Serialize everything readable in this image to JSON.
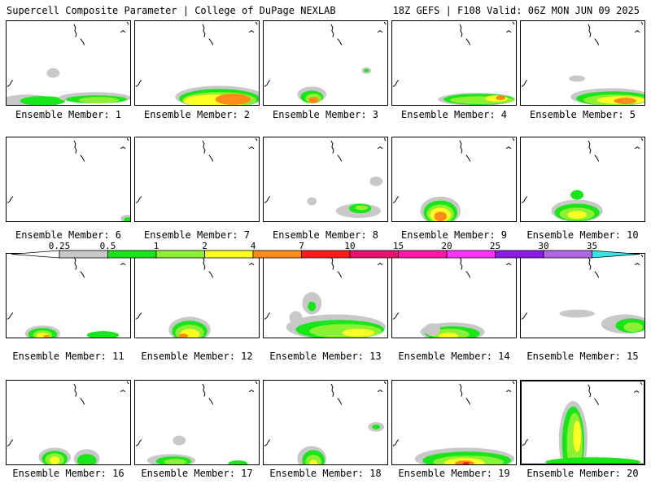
{
  "header": {
    "left_title": "Supercell Composite Parameter | College of DuPage NEXLAB",
    "right_title": "18Z GEFS | F108 Valid: 06Z MON JUN 09 2025"
  },
  "colorbar": {
    "levels": [
      {
        "label": "0.25",
        "color": "#c8c8c8"
      },
      {
        "label": "0.5",
        "color": "#19e619"
      },
      {
        "label": "1",
        "color": "#8cf033"
      },
      {
        "label": "2",
        "color": "#ffff26"
      },
      {
        "label": "4",
        "color": "#ff8c1a"
      },
      {
        "label": "7",
        "color": "#ff1a1a"
      },
      {
        "label": "10",
        "color": "#e6106e"
      },
      {
        "label": "15",
        "color": "#ff1aa6"
      },
      {
        "label": "20",
        "color": "#ff33ff"
      },
      {
        "label": "25",
        "color": "#8c19e6"
      },
      {
        "label": "30",
        "color": "#b266e6"
      },
      {
        "label": "35",
        "color": "#33e6e6"
      }
    ]
  },
  "panels": [
    {
      "label": "Ensemble Member: 1",
      "blobs": [
        [
          25,
          100,
          32,
          8,
          0.25
        ],
        [
          45,
          100,
          28,
          6,
          0.5
        ],
        [
          110,
          96,
          45,
          7,
          0.25
        ],
        [
          112,
          98,
          38,
          5,
          0.5
        ],
        [
          115,
          99,
          25,
          4,
          1
        ],
        [
          58,
          65,
          8,
          6,
          0.25
        ]
      ]
    },
    {
      "label": "Ensemble Member: 2",
      "blobs": [
        [
          105,
          95,
          55,
          14,
          0.25
        ],
        [
          105,
          97,
          50,
          12,
          0.5
        ],
        [
          105,
          99,
          46,
          10,
          1
        ],
        [
          100,
          100,
          40,
          8,
          2
        ],
        [
          122,
          98,
          22,
          7,
          4
        ]
      ]
    },
    {
      "label": "Ensemble Member: 3",
      "blobs": [
        [
          60,
          92,
          18,
          10,
          0.25
        ],
        [
          60,
          95,
          14,
          8,
          0.5
        ],
        [
          62,
          97,
          10,
          6,
          1
        ],
        [
          62,
          99,
          6,
          4,
          4
        ],
        [
          128,
          62,
          6,
          4,
          0.25
        ],
        [
          128,
          62,
          3,
          2,
          0.5
        ]
      ]
    },
    {
      "label": "Ensemble Member: 4",
      "blobs": [
        [
          105,
          98,
          48,
          8,
          0.25
        ],
        [
          108,
          98,
          44,
          7,
          0.5
        ],
        [
          112,
          99,
          40,
          5,
          1
        ],
        [
          130,
          97,
          14,
          4,
          2
        ],
        [
          135,
          96,
          6,
          3,
          4
        ]
      ]
    },
    {
      "label": "Ensemble Member: 5",
      "blobs": [
        [
          112,
          95,
          50,
          11,
          0.25
        ],
        [
          115,
          97,
          46,
          9,
          0.5
        ],
        [
          118,
          99,
          40,
          7,
          1
        ],
        [
          125,
          99,
          30,
          5,
          2
        ],
        [
          130,
          100,
          14,
          4,
          4
        ],
        [
          70,
          72,
          10,
          4,
          0.25
        ]
      ]
    },
    {
      "label": "Ensemble Member: 6",
      "blobs": [
        [
          150,
          102,
          8,
          5,
          0.25
        ],
        [
          151,
          103,
          5,
          3,
          0.5
        ]
      ]
    },
    {
      "label": "Ensemble Member: 7",
      "blobs": []
    },
    {
      "label": "Ensemble Member: 8",
      "blobs": [
        [
          118,
          92,
          28,
          9,
          0.25
        ],
        [
          120,
          89,
          14,
          6,
          0.5
        ],
        [
          122,
          88,
          8,
          3,
          1
        ],
        [
          140,
          55,
          8,
          6,
          0.25
        ],
        [
          60,
          80,
          6,
          5,
          0.25
        ]
      ]
    },
    {
      "label": "Ensemble Member: 9",
      "blobs": [
        [
          60,
          92,
          25,
          18,
          0.25
        ],
        [
          60,
          94,
          21,
          15,
          0.5
        ],
        [
          60,
          96,
          17,
          12,
          1
        ],
        [
          60,
          97,
          13,
          9,
          2
        ],
        [
          60,
          99,
          8,
          6,
          4
        ]
      ]
    },
    {
      "label": "Ensemble Member: 10",
      "blobs": [
        [
          70,
          92,
          32,
          14,
          0.25
        ],
        [
          70,
          94,
          28,
          11,
          0.5
        ],
        [
          70,
          96,
          22,
          8,
          1
        ],
        [
          70,
          97,
          12,
          5,
          2
        ],
        [
          70,
          72,
          8,
          6,
          0.5
        ]
      ]
    },
    {
      "label": "Ensemble Member: 11",
      "blobs": [
        [
          45,
          100,
          22,
          10,
          0.25
        ],
        [
          45,
          101,
          18,
          8,
          0.5
        ],
        [
          45,
          102,
          12,
          6,
          1
        ],
        [
          45,
          103,
          8,
          4,
          2
        ],
        [
          50,
          104,
          4,
          2,
          4
        ],
        [
          120,
          102,
          20,
          5,
          0.5
        ]
      ]
    },
    {
      "label": "Ensemble Member: 12",
      "blobs": [
        [
          68,
          95,
          26,
          16,
          0.25
        ],
        [
          68,
          97,
          22,
          13,
          0.5
        ],
        [
          68,
          99,
          18,
          10,
          1
        ],
        [
          68,
          101,
          12,
          7,
          2
        ],
        [
          60,
          103,
          6,
          3,
          4
        ]
      ]
    },
    {
      "label": "Ensemble Member: 13",
      "blobs": [
        [
          90,
          92,
          62,
          16,
          0.25
        ],
        [
          95,
          95,
          55,
          12,
          0.5
        ],
        [
          102,
          97,
          45,
          9,
          1
        ],
        [
          118,
          99,
          20,
          5,
          2
        ],
        [
          60,
          62,
          12,
          14,
          0.25
        ],
        [
          60,
          66,
          5,
          6,
          0.5
        ],
        [
          40,
          80,
          8,
          8,
          0.25
        ]
      ]
    },
    {
      "label": "Ensemble Member: 14",
      "blobs": [
        [
          75,
          98,
          40,
          12,
          0.25
        ],
        [
          75,
          100,
          34,
          9,
          0.5
        ],
        [
          72,
          101,
          24,
          7,
          1
        ],
        [
          70,
          103,
          12,
          4,
          2
        ],
        [
          50,
          95,
          10,
          8,
          0.25
        ]
      ]
    },
    {
      "label": "Ensemble Member: 15",
      "blobs": [
        [
          130,
          88,
          30,
          12,
          0.25
        ],
        [
          138,
          90,
          20,
          9,
          0.5
        ],
        [
          140,
          92,
          12,
          6,
          1
        ],
        [
          70,
          75,
          22,
          5,
          0.25
        ]
      ]
    },
    {
      "label": "Ensemble Member: 16",
      "blobs": [
        [
          60,
          96,
          20,
          12,
          0.25
        ],
        [
          60,
          98,
          16,
          10,
          0.5
        ],
        [
          60,
          99,
          12,
          8,
          1
        ],
        [
          60,
          100,
          6,
          5,
          2
        ],
        [
          100,
          98,
          16,
          12,
          0.25
        ],
        [
          100,
          100,
          12,
          8,
          0.5
        ]
      ]
    },
    {
      "label": "Ensemble Member: 17",
      "blobs": [
        [
          45,
          100,
          30,
          8,
          0.25
        ],
        [
          48,
          101,
          22,
          6,
          0.5
        ],
        [
          50,
          102,
          14,
          4,
          1
        ],
        [
          55,
          75,
          8,
          6,
          0.25
        ],
        [
          128,
          104,
          12,
          4,
          0.5
        ]
      ]
    },
    {
      "label": "Ensemble Member: 18",
      "blobs": [
        [
          60,
          98,
          18,
          16,
          0.25
        ],
        [
          62,
          100,
          14,
          13,
          0.5
        ],
        [
          62,
          102,
          10,
          9,
          1
        ],
        [
          62,
          104,
          5,
          5,
          2
        ],
        [
          140,
          58,
          10,
          6,
          0.25
        ],
        [
          140,
          58,
          5,
          3,
          0.5
        ]
      ]
    },
    {
      "label": "Ensemble Member: 19",
      "blobs": [
        [
          90,
          98,
          62,
          14,
          0.25
        ],
        [
          93,
          100,
          55,
          11,
          0.5
        ],
        [
          95,
          102,
          44,
          8,
          1
        ],
        [
          90,
          103,
          25,
          6,
          2
        ],
        [
          90,
          104,
          12,
          4,
          4
        ],
        [
          92,
          104,
          4,
          2,
          7
        ]
      ]
    },
    {
      "label": "Ensemble Member: 20",
      "blobs": [
        [
          65,
          75,
          18,
          50,
          0.25
        ],
        [
          65,
          78,
          14,
          46,
          0.5
        ],
        [
          67,
          80,
          10,
          40,
          1
        ],
        [
          70,
          70,
          5,
          20,
          2
        ],
        [
          90,
          103,
          60,
          6,
          0.5
        ]
      ]
    }
  ]
}
